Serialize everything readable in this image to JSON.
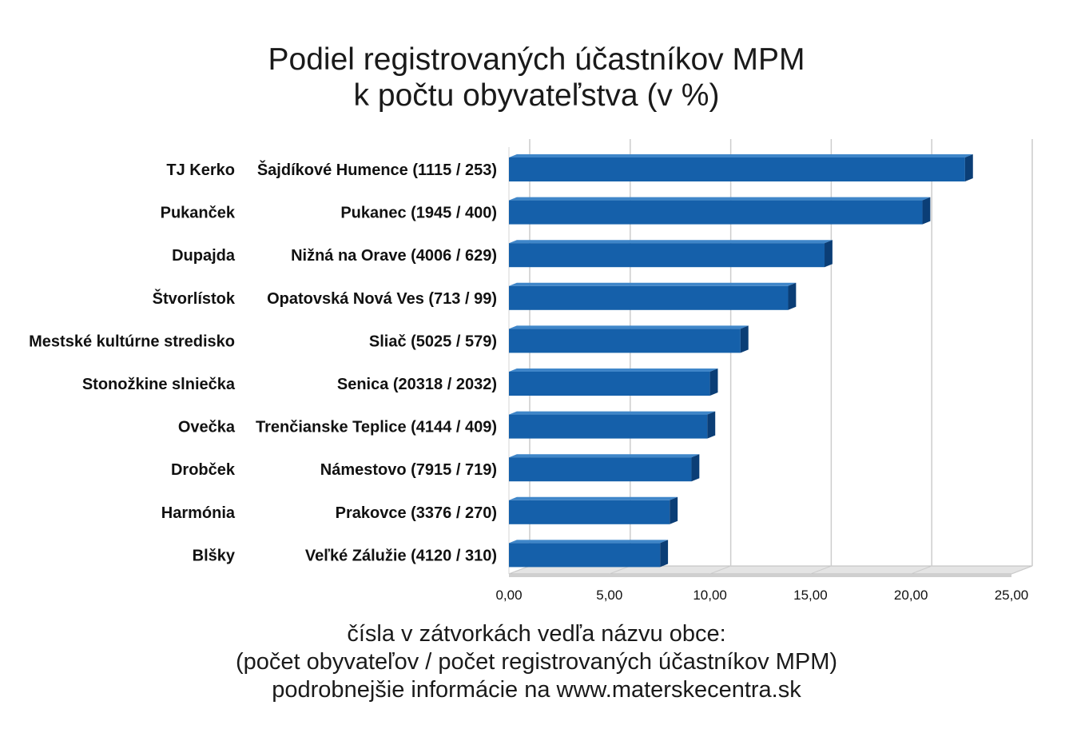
{
  "title_line1": "Podiel registrovaných účastníkov MPM",
  "title_line2": "k počtu obyvateľstva (v %)",
  "footer_line1": "čísla v zátvorkách vedľa názvu obce:",
  "footer_line2": "(počet obyvateľov / počet registrovaných účastníkov MPM)",
  "footer_line3": "podrobnejšie informácie na www.materskecentra.sk",
  "chart_data": {
    "type": "bar",
    "orientation": "horizontal",
    "three_d": true,
    "categories": [
      {
        "center": "TJ Kerko",
        "municipality": "Šajdíkové Humence (1115 / 253)"
      },
      {
        "center": "Pukanček",
        "municipality": "Pukanec (1945 / 400)"
      },
      {
        "center": "Dupajda",
        "municipality": "Nižná na Orave (4006 / 629)"
      },
      {
        "center": "Štvorlístok",
        "municipality": "Opatovská Nová Ves (713 / 99)"
      },
      {
        "center": "Mestské kultúrne stredisko",
        "municipality": "Sliač (5025 / 579)"
      },
      {
        "center": "Stonožkine slniečka",
        "municipality": "Senica (20318 / 2032)"
      },
      {
        "center": "Ovečka",
        "municipality": "Trenčianske Teplice (4144 / 409)"
      },
      {
        "center": "Drobček",
        "municipality": "Námestovo (7915 / 719)"
      },
      {
        "center": "Harmónia",
        "municipality": "Prakovce (3376 / 270)"
      },
      {
        "center": "Blšky",
        "municipality": "Veľké Zálužie (4120 / 310)"
      }
    ],
    "values": [
      22.69,
      20.57,
      15.7,
      13.89,
      11.52,
      10.0,
      9.87,
      9.08,
      8.0,
      7.52
    ],
    "xlim": [
      0,
      25
    ],
    "xticks": [
      "0,00",
      "5,00",
      "10,00",
      "15,00",
      "20,00",
      "25,00"
    ],
    "grid": true,
    "colors": {
      "bar_front": "#1560aa",
      "bar_top": "#3f86c9",
      "bar_side": "#0b3e76",
      "grid": "#cccccc",
      "floor": "#e4e4e4"
    }
  }
}
